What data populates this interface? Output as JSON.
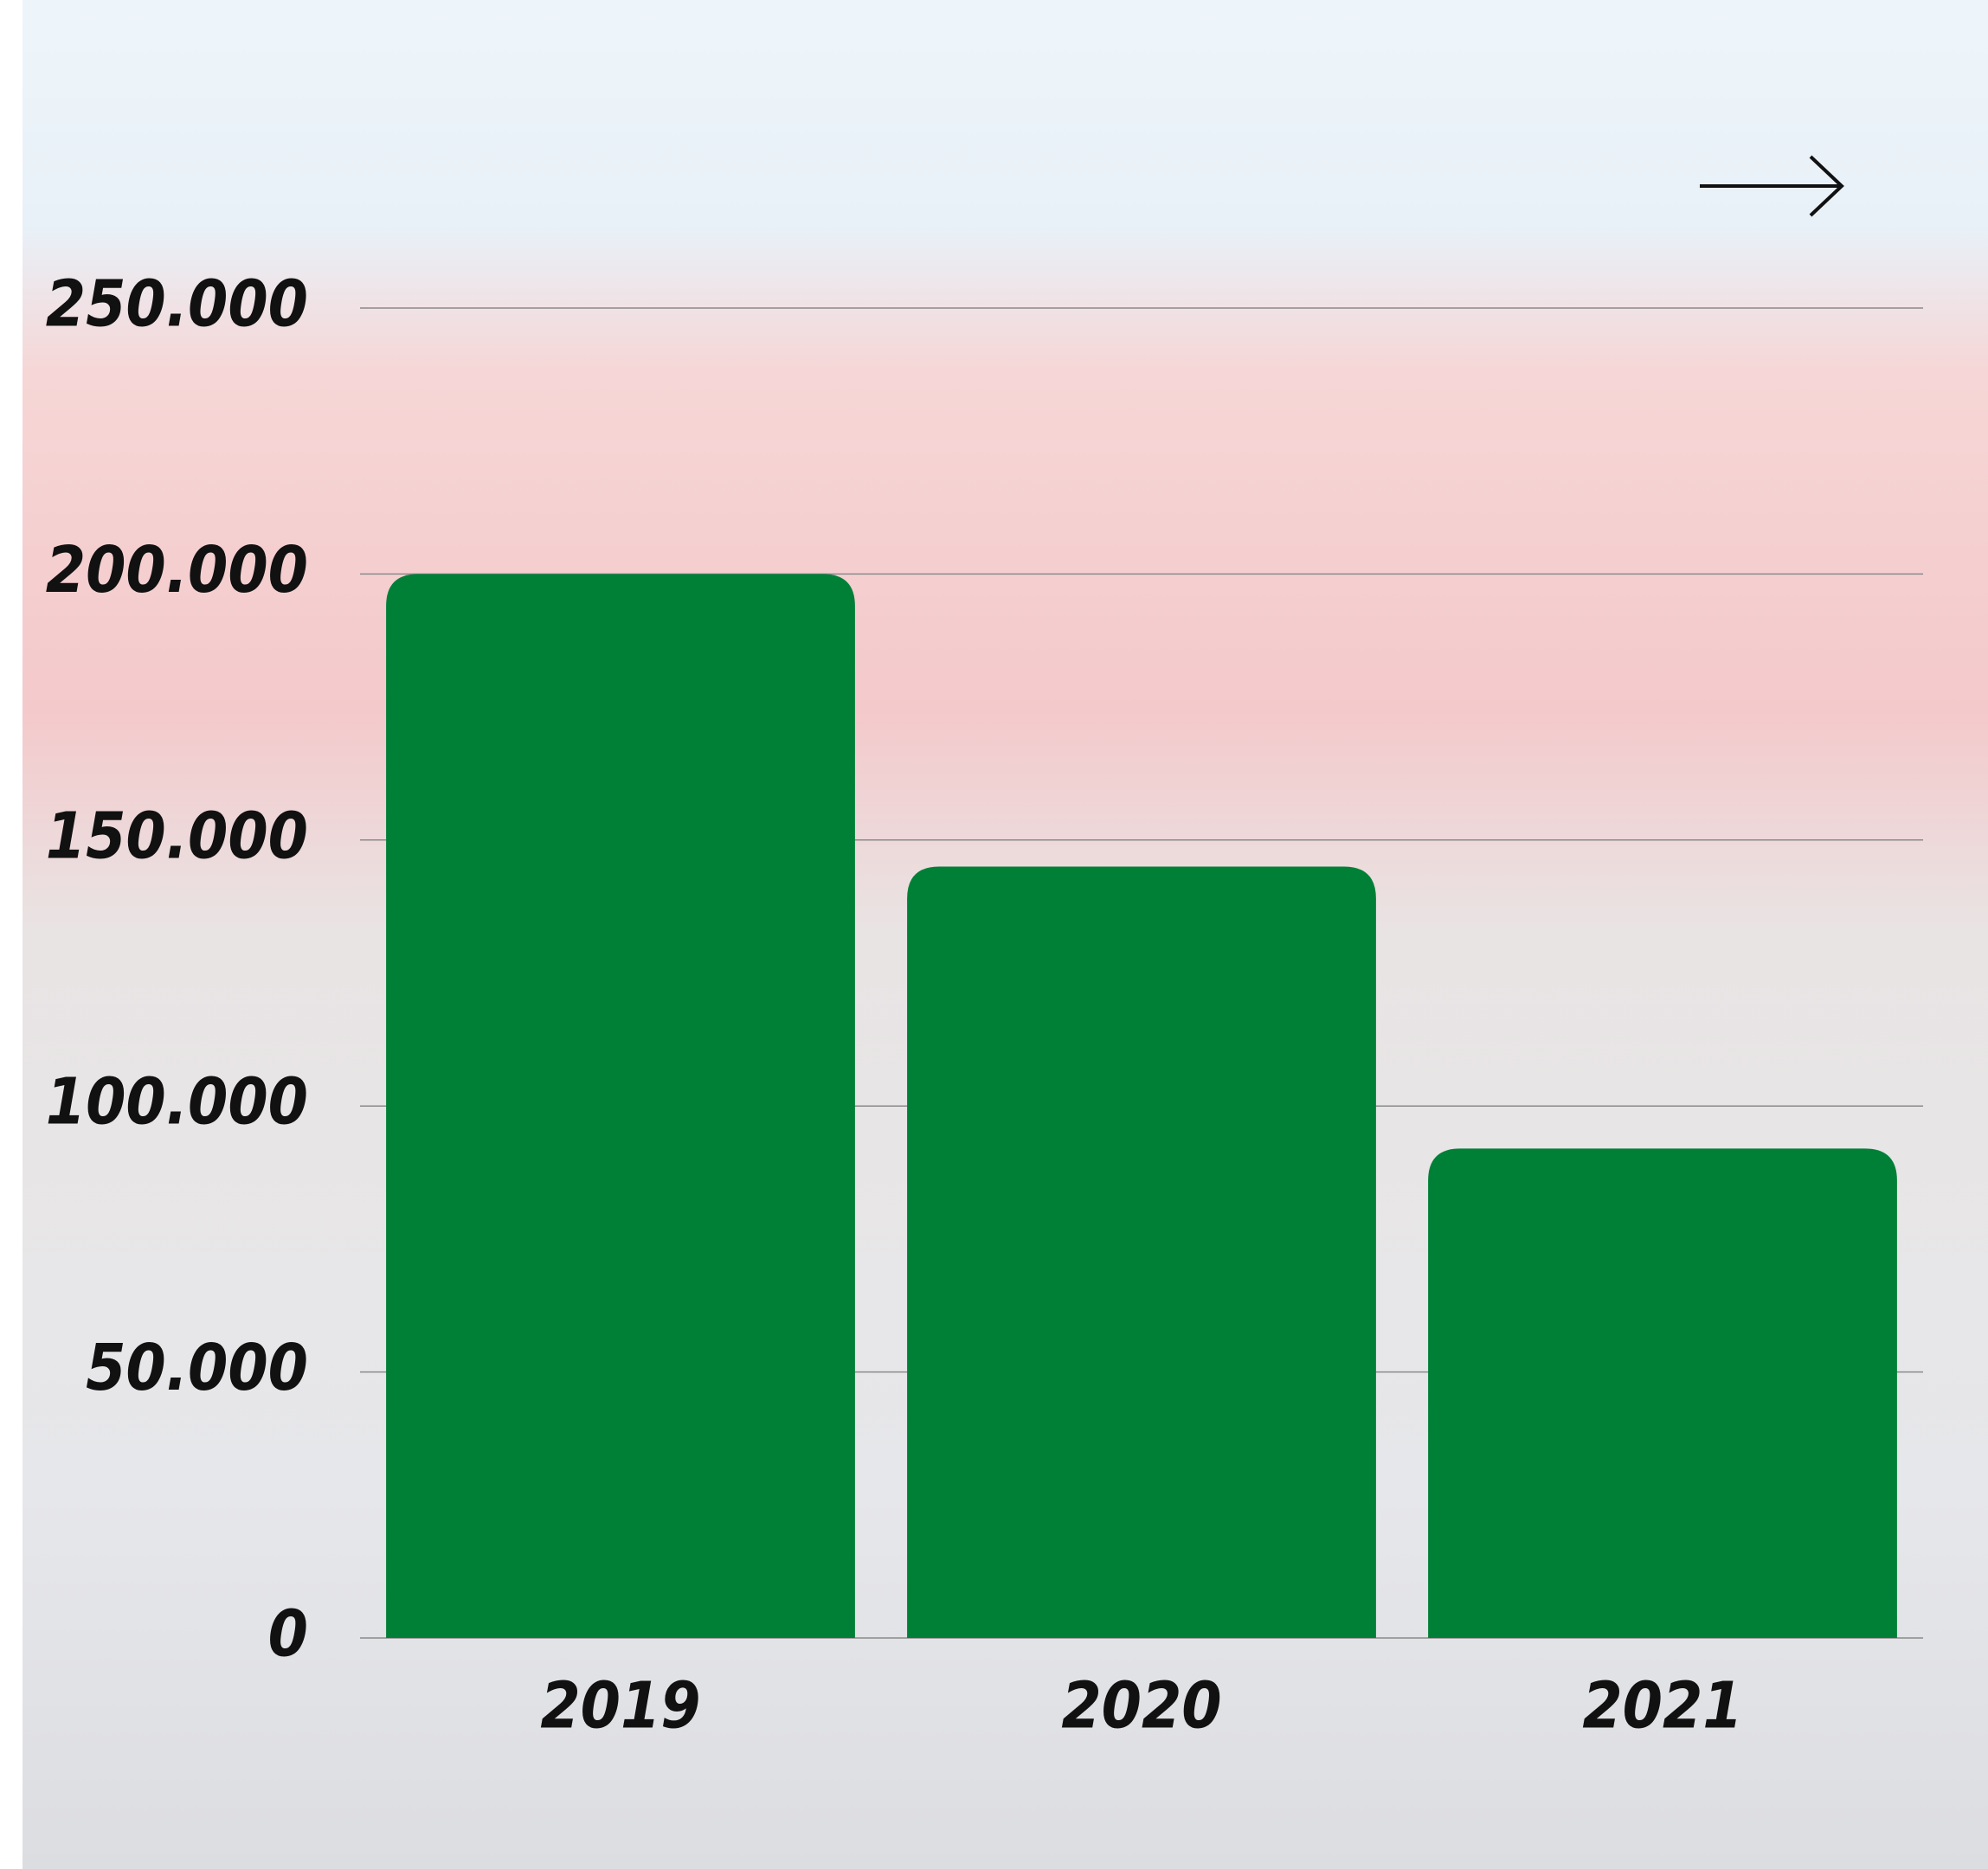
{
  "chart_data": {
    "type": "bar",
    "categories": [
      "2019",
      "2020",
      "2021"
    ],
    "values": [
      200000,
      145000,
      92000
    ],
    "color": "#008037",
    "ylim": [
      0,
      250000
    ],
    "yticks": [
      0,
      {
        "value": 50000,
        "label": "50.000"
      },
      {
        "value": 100000,
        "label": "100.000"
      },
      {
        "value": 150000,
        "label": "150.000"
      },
      {
        "value": 200000,
        "label": "200.000"
      },
      {
        "value": 250000,
        "label": "250.000"
      }
    ],
    "grid": true
  }
}
